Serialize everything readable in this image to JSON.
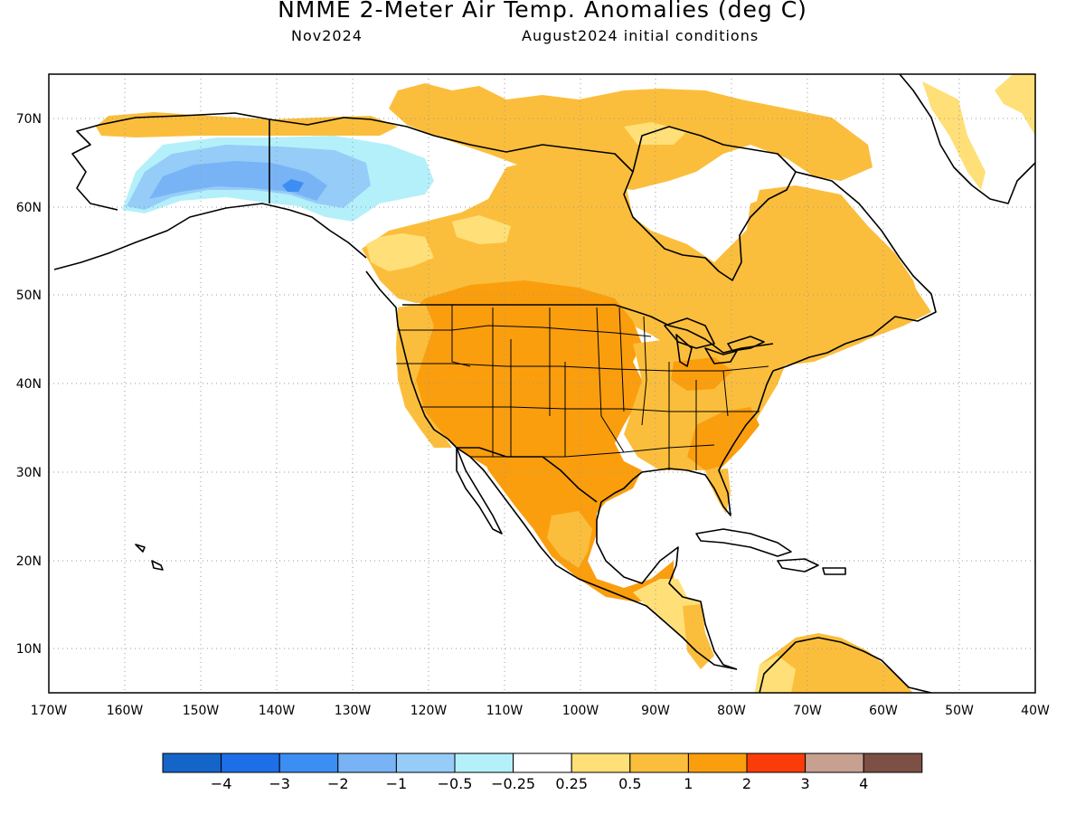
{
  "header": {
    "title": "NMME 2-Meter Air Temp. Anomalies (deg C)",
    "month": "Nov2024",
    "initial_conditions": "August2024 initial conditions"
  },
  "map": {
    "projection": "cylindrical-equidistant",
    "lon_range": [
      -170,
      -40
    ],
    "lat_range": [
      5,
      75
    ],
    "lat_ticks": [
      "70N",
      "60N",
      "50N",
      "40N",
      "30N",
      "20N",
      "10N"
    ],
    "lon_ticks": [
      "170W",
      "160W",
      "150W",
      "140W",
      "130W",
      "120W",
      "110W",
      "100W",
      "90W",
      "80W",
      "70W",
      "60W",
      "50W",
      "40W"
    ],
    "grid": true,
    "land_outline_color": "#000000",
    "ocean_color": "#ffffff"
  },
  "colorbar": {
    "colors": [
      "#1565c8",
      "#1e6ee8",
      "#3c8ef2",
      "#78b4f5",
      "#96ccf8",
      "#b4f0fa",
      "#ffffff",
      "#ffe078",
      "#fbbe3c",
      "#fa9e0e",
      "#fa3c0a",
      "#c8a090",
      "#7c5044"
    ],
    "labels": [
      "−4",
      "−3",
      "−2",
      "−1",
      "−0.5",
      "−0.25",
      "0.25",
      "0.5",
      "1",
      "2",
      "3",
      "4"
    ]
  },
  "anomaly_regions": [
    {
      "name": "alaska-interior",
      "category": "−1 to −0.5",
      "color": "#96ccf8"
    },
    {
      "name": "alaska-core",
      "category": "−2 to −1",
      "color": "#78b4f5"
    },
    {
      "name": "yukon-fringe",
      "category": "−0.5 to −0.25",
      "color": "#b4f0fa"
    },
    {
      "name": "alaska-north-slope",
      "category": "0.5 to 1",
      "color": "#fbbe3c"
    },
    {
      "name": "canada-prairies",
      "category": "0.5 to 1",
      "color": "#fbbe3c"
    },
    {
      "name": "western-us",
      "category": "1 to 2",
      "color": "#fa9e0e"
    },
    {
      "name": "central-us",
      "category": "1 to 2",
      "color": "#fa9e0e"
    },
    {
      "name": "eastern-us",
      "category": "0.5 to 1",
      "color": "#fbbe3c"
    },
    {
      "name": "mexico",
      "category": "1 to 2",
      "color": "#fa9e0e"
    },
    {
      "name": "central-america",
      "category": "0.25 to 0.5",
      "color": "#ffe078"
    },
    {
      "name": "quebec-labrador",
      "category": "0.5 to 1",
      "color": "#fbbe3c"
    },
    {
      "name": "canadian-arctic",
      "category": "0.5 to 1",
      "color": "#fbbe3c"
    },
    {
      "name": "greenland-east",
      "category": "0.25 to 0.5",
      "color": "#ffe078"
    },
    {
      "name": "northern-south-america",
      "category": "0.5 to 1",
      "color": "#fbbe3c"
    }
  ]
}
